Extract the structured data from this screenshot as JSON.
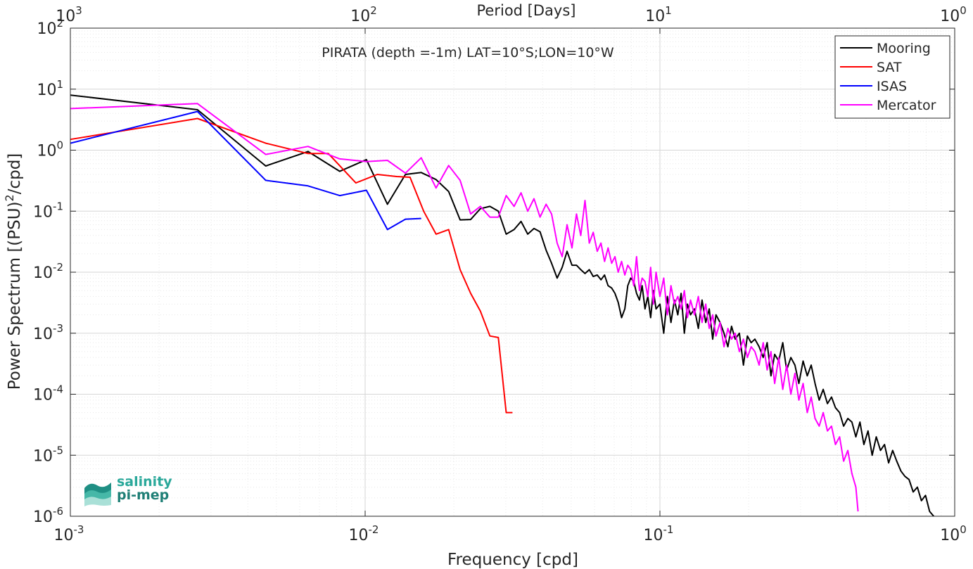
{
  "chart_data": {
    "type": "line",
    "title": "PIRATA (depth =-1m) LAT=10°S;LON=10°W",
    "xlabel": "Frequency [cpd]",
    "ylabel": "Power Spectrum [(PSU)²/cpd]",
    "ylabel_parts": {
      "pre": "Power Spectrum [(PSU)",
      "sup": "2",
      "post": "/cpd]"
    },
    "top_xlabel": "Period [Days]",
    "xscale": "log",
    "yscale": "log",
    "xlim": [
      0.001,
      1
    ],
    "ylim": [
      1e-06,
      100
    ],
    "grid": true,
    "legend_position": "top-right",
    "x_ticks": [
      {
        "base": "10",
        "exp": "-3"
      },
      {
        "base": "10",
        "exp": "-2"
      },
      {
        "base": "10",
        "exp": "-1"
      },
      {
        "base": "10",
        "exp": "0"
      }
    ],
    "top_ticks": [
      {
        "base": "10",
        "exp": "3"
      },
      {
        "base": "10",
        "exp": "2"
      },
      {
        "base": "10",
        "exp": "1"
      },
      {
        "base": "10",
        "exp": "0"
      }
    ],
    "y_ticks": [
      {
        "base": "10",
        "exp": "-6"
      },
      {
        "base": "10",
        "exp": "-5"
      },
      {
        "base": "10",
        "exp": "-4"
      },
      {
        "base": "10",
        "exp": "-3"
      },
      {
        "base": "10",
        "exp": "-2"
      },
      {
        "base": "10",
        "exp": "-1"
      },
      {
        "base": "10",
        "exp": "0"
      },
      {
        "base": "10",
        "exp": "1"
      },
      {
        "base": "10",
        "exp": "2"
      }
    ],
    "series": [
      {
        "name": "Mooring",
        "color": "#000000",
        "x": [
          0.001,
          0.0027,
          0.0046,
          0.0064,
          0.0082,
          0.0101,
          0.0119,
          0.0137,
          0.0155,
          0.0174,
          0.0192,
          0.021,
          0.0228,
          0.0246,
          0.0265,
          0.0283,
          0.0301,
          0.032,
          0.0338,
          0.0356,
          0.0374,
          0.0392,
          0.0411,
          0.0429,
          0.0448,
          0.0466,
          0.0484,
          0.0503,
          0.0521,
          0.0539,
          0.0557,
          0.0576,
          0.0594,
          0.0613,
          0.0631,
          0.0649,
          0.0667,
          0.0686,
          0.0704,
          0.0722,
          0.0741,
          0.076,
          0.0778,
          0.0796,
          0.0815,
          0.0833,
          0.0852,
          0.087,
          0.089,
          0.091,
          0.093,
          0.095,
          0.097,
          0.1,
          0.103,
          0.106,
          0.109,
          0.112,
          0.115,
          0.118,
          0.121,
          0.124,
          0.127,
          0.131,
          0.135,
          0.139,
          0.143,
          0.147,
          0.151,
          0.155,
          0.16,
          0.165,
          0.17,
          0.175,
          0.18,
          0.186,
          0.192,
          0.198,
          0.204,
          0.21,
          0.217,
          0.224,
          0.231,
          0.238,
          0.245,
          0.253,
          0.261,
          0.269,
          0.278,
          0.287,
          0.296,
          0.306,
          0.316,
          0.326,
          0.336,
          0.347,
          0.358,
          0.37,
          0.382,
          0.394,
          0.407,
          0.42,
          0.434,
          0.448,
          0.462,
          0.477,
          0.492,
          0.508,
          0.525,
          0.542,
          0.56,
          0.578,
          0.597,
          0.616,
          0.636,
          0.657,
          0.678,
          0.7,
          0.723,
          0.747,
          0.771,
          0.796,
          0.822,
          0.849
        ],
        "y": [
          8.0,
          4.6,
          0.55,
          0.95,
          0.45,
          0.7,
          0.13,
          0.4,
          0.43,
          0.33,
          0.21,
          0.072,
          0.073,
          0.11,
          0.12,
          0.1,
          0.042,
          0.05,
          0.068,
          0.042,
          0.052,
          0.046,
          0.023,
          0.014,
          0.008,
          0.012,
          0.022,
          0.013,
          0.013,
          0.011,
          0.0095,
          0.011,
          0.0085,
          0.009,
          0.0075,
          0.009,
          0.006,
          0.0055,
          0.0045,
          0.0032,
          0.0018,
          0.0025,
          0.006,
          0.008,
          0.007,
          0.0045,
          0.0035,
          0.006,
          0.0025,
          0.004,
          0.0018,
          0.005,
          0.0025,
          0.003,
          0.001,
          0.004,
          0.0015,
          0.0035,
          0.002,
          0.0045,
          0.001,
          0.003,
          0.002,
          0.0025,
          0.0012,
          0.0035,
          0.0015,
          0.0025,
          0.0008,
          0.002,
          0.0015,
          0.001,
          0.0006,
          0.0013,
          0.0008,
          0.001,
          0.0003,
          0.0009,
          0.0007,
          0.0008,
          0.0006,
          0.0004,
          0.0007,
          0.0002,
          0.00045,
          0.00035,
          0.0007,
          0.00025,
          0.0004,
          0.0003,
          0.00015,
          0.00035,
          0.0002,
          0.0003,
          0.00015,
          8e-05,
          0.00012,
          7e-05,
          9e-05,
          6e-05,
          5e-05,
          3e-05,
          4e-05,
          3.5e-05,
          2e-05,
          3.5e-05,
          1.5e-05,
          2.5e-05,
          1e-05,
          2e-05,
          1.2e-05,
          1.5e-05,
          7.5e-06,
          1.2e-05,
          8e-06,
          5.5e-06,
          4.5e-06,
          4e-06,
          2.5e-06,
          3e-06,
          1.8e-06,
          2.2e-06,
          1.2e-06,
          1e-06
        ]
      },
      {
        "name": "SAT",
        "color": "#ff0000",
        "x": [
          0.001,
          0.0027,
          0.0046,
          0.0064,
          0.0075,
          0.0093,
          0.011,
          0.0128,
          0.0142,
          0.0158,
          0.0174,
          0.0192,
          0.021,
          0.0228,
          0.0246,
          0.0265,
          0.0283,
          0.0301,
          0.0316
        ],
        "y": [
          1.5,
          3.3,
          1.3,
          0.88,
          0.88,
          0.29,
          0.4,
          0.37,
          0.36,
          0.1,
          0.042,
          0.05,
          0.011,
          0.0045,
          0.0023,
          0.0009,
          0.00085,
          5e-05,
          5e-05
        ]
      },
      {
        "name": "ISAS",
        "color": "#0000ff",
        "x": [
          0.001,
          0.0027,
          0.0046,
          0.0064,
          0.0082,
          0.0101,
          0.0119,
          0.0137,
          0.0155
        ],
        "y": [
          1.3,
          4.3,
          0.32,
          0.26,
          0.18,
          0.22,
          0.05,
          0.074,
          0.076
        ]
      },
      {
        "name": "Mercator",
        "color": "#ff00ff",
        "x": [
          0.001,
          0.0027,
          0.0046,
          0.0064,
          0.0082,
          0.0101,
          0.0119,
          0.0137,
          0.0155,
          0.0174,
          0.0192,
          0.021,
          0.0228,
          0.0246,
          0.0265,
          0.0283,
          0.0301,
          0.032,
          0.0338,
          0.0356,
          0.0374,
          0.0392,
          0.0411,
          0.0429,
          0.0448,
          0.0466,
          0.0484,
          0.0503,
          0.0521,
          0.0539,
          0.0557,
          0.0576,
          0.0594,
          0.0613,
          0.0631,
          0.0649,
          0.0667,
          0.0686,
          0.0704,
          0.0722,
          0.0741,
          0.076,
          0.0778,
          0.0796,
          0.0815,
          0.0833,
          0.0852,
          0.087,
          0.089,
          0.091,
          0.093,
          0.095,
          0.097,
          0.1,
          0.103,
          0.106,
          0.109,
          0.112,
          0.115,
          0.118,
          0.121,
          0.124,
          0.127,
          0.131,
          0.135,
          0.139,
          0.143,
          0.147,
          0.151,
          0.155,
          0.16,
          0.165,
          0.17,
          0.175,
          0.18,
          0.186,
          0.192,
          0.198,
          0.204,
          0.21,
          0.217,
          0.224,
          0.231,
          0.238,
          0.245,
          0.253,
          0.261,
          0.269,
          0.278,
          0.287,
          0.296,
          0.306,
          0.316,
          0.326,
          0.336,
          0.347,
          0.358,
          0.37,
          0.382,
          0.394,
          0.407,
          0.42,
          0.434,
          0.448,
          0.462,
          0.47
        ],
        "y": [
          4.8,
          5.8,
          0.85,
          1.15,
          0.72,
          0.65,
          0.68,
          0.42,
          0.75,
          0.24,
          0.56,
          0.32,
          0.09,
          0.12,
          0.08,
          0.08,
          0.18,
          0.12,
          0.2,
          0.1,
          0.16,
          0.08,
          0.13,
          0.09,
          0.03,
          0.018,
          0.06,
          0.025,
          0.09,
          0.04,
          0.15,
          0.03,
          0.045,
          0.022,
          0.03,
          0.015,
          0.025,
          0.014,
          0.018,
          0.01,
          0.015,
          0.009,
          0.013,
          0.011,
          0.006,
          0.018,
          0.005,
          0.008,
          0.007,
          0.004,
          0.012,
          0.003,
          0.01,
          0.004,
          0.008,
          0.002,
          0.006,
          0.003,
          0.004,
          0.0025,
          0.005,
          0.0018,
          0.0035,
          0.002,
          0.004,
          0.0015,
          0.003,
          0.0012,
          0.002,
          0.0009,
          0.0015,
          0.0006,
          0.0012,
          0.0008,
          0.001,
          0.0005,
          0.0008,
          0.0004,
          0.0006,
          0.0005,
          0.0003,
          0.0007,
          0.00025,
          0.0005,
          0.00015,
          0.0004,
          0.00012,
          0.0003,
          0.0001,
          0.00022,
          8e-05,
          0.00015,
          5e-05,
          9e-05,
          4e-05,
          3e-05,
          5e-05,
          2.5e-05,
          3e-05,
          1.5e-05,
          2e-05,
          8e-06,
          1.2e-05,
          5e-06,
          3e-06,
          1.2e-06
        ]
      }
    ]
  },
  "logo": {
    "line1": "salinity",
    "line2": "pi-mep"
  }
}
